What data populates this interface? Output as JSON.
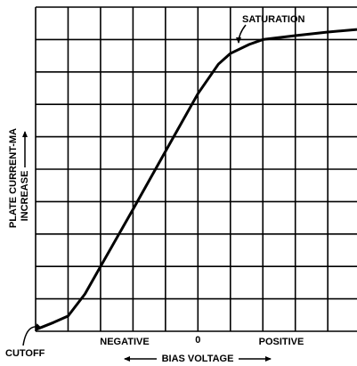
{
  "chart_data": {
    "type": "line",
    "xlabel": "BIAS VOLTAGE",
    "ylabel": [
      "PLATE CURRENT-MA",
      "INCREASE"
    ],
    "annotations": [
      "SATURATION",
      "CUTOFF",
      "NEGATIVE",
      "POSITIVE"
    ],
    "x": [
      -5,
      -4.45,
      -4,
      -3.48,
      -3,
      -2,
      -1,
      0,
      0.63,
      1,
      1.58,
      2,
      3,
      4,
      4.9
    ],
    "series": [
      {
        "color": "#000000",
        "values": [
          0.05,
          0.27,
          0.47,
          1.15,
          2,
          3.76,
          5.55,
          7.33,
          8.24,
          8.57,
          8.85,
          9,
          9.12,
          9.23,
          9.31
        ]
      }
    ],
    "xlim": [
      -5,
      4.9
    ],
    "ylim": [
      0,
      10
    ],
    "xticks": [
      -5,
      -4,
      -3,
      -2,
      -1,
      0,
      1,
      2,
      3,
      4
    ],
    "yticks": [
      0,
      1,
      2,
      3,
      4,
      5,
      6,
      7,
      8,
      9,
      10
    ],
    "xtick_labels": [
      0
    ],
    "grid": true
  }
}
